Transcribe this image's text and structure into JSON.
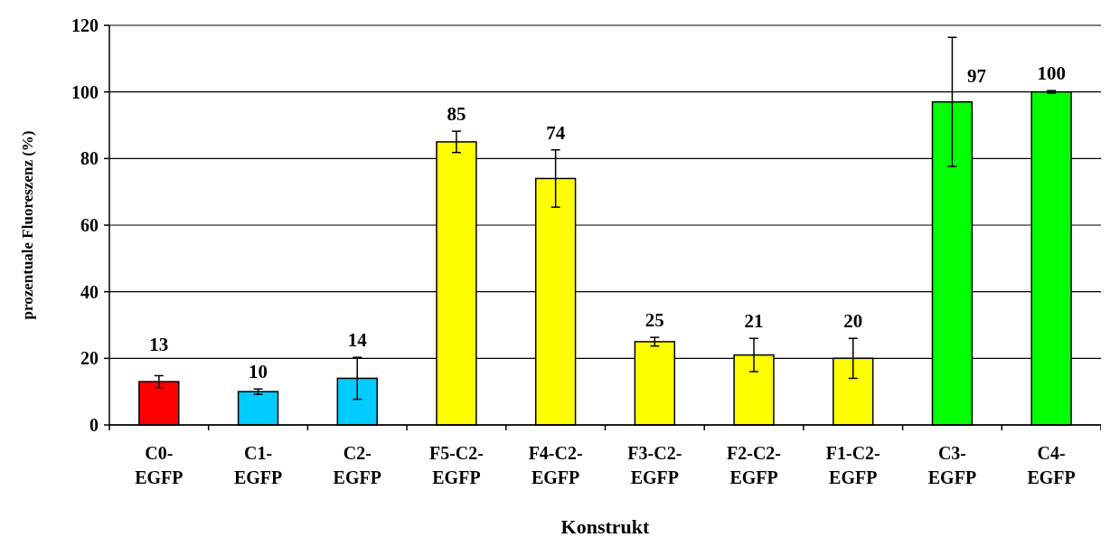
{
  "chart_data": {
    "type": "bar",
    "xlabel": "Konstrukt",
    "ylabel": "prozentuale Fluoreszenz (%)",
    "categories": [
      "C0-\nEGFP",
      "C1-\nEGFP",
      "C2-\nEGFP",
      "F5-C2-\nEGFP",
      "F4-C2-\nEGFP",
      "F3-C2-\nEGFP",
      "F2-C2-\nEGFP",
      "F1-C2-\nEGFP",
      "C3-\nEGFP",
      "C4-\nEGFP"
    ],
    "values": [
      13,
      10,
      14,
      85,
      74,
      25,
      21,
      20,
      97,
      100
    ],
    "errors": [
      1.8,
      0.8,
      6.3,
      3.2,
      8.6,
      1.3,
      5,
      6,
      19.4,
      0.4
    ],
    "colors": [
      "#ff0000",
      "#00ccff",
      "#00ccff",
      "#ffff00",
      "#ffff00",
      "#ffff00",
      "#ffff00",
      "#ffff00",
      "#00ff00",
      "#00ff00"
    ],
    "data_labels": true,
    "ylim": [
      0,
      120
    ],
    "yticks": [
      0,
      20,
      40,
      60,
      80,
      100,
      120
    ],
    "grid": "y"
  }
}
